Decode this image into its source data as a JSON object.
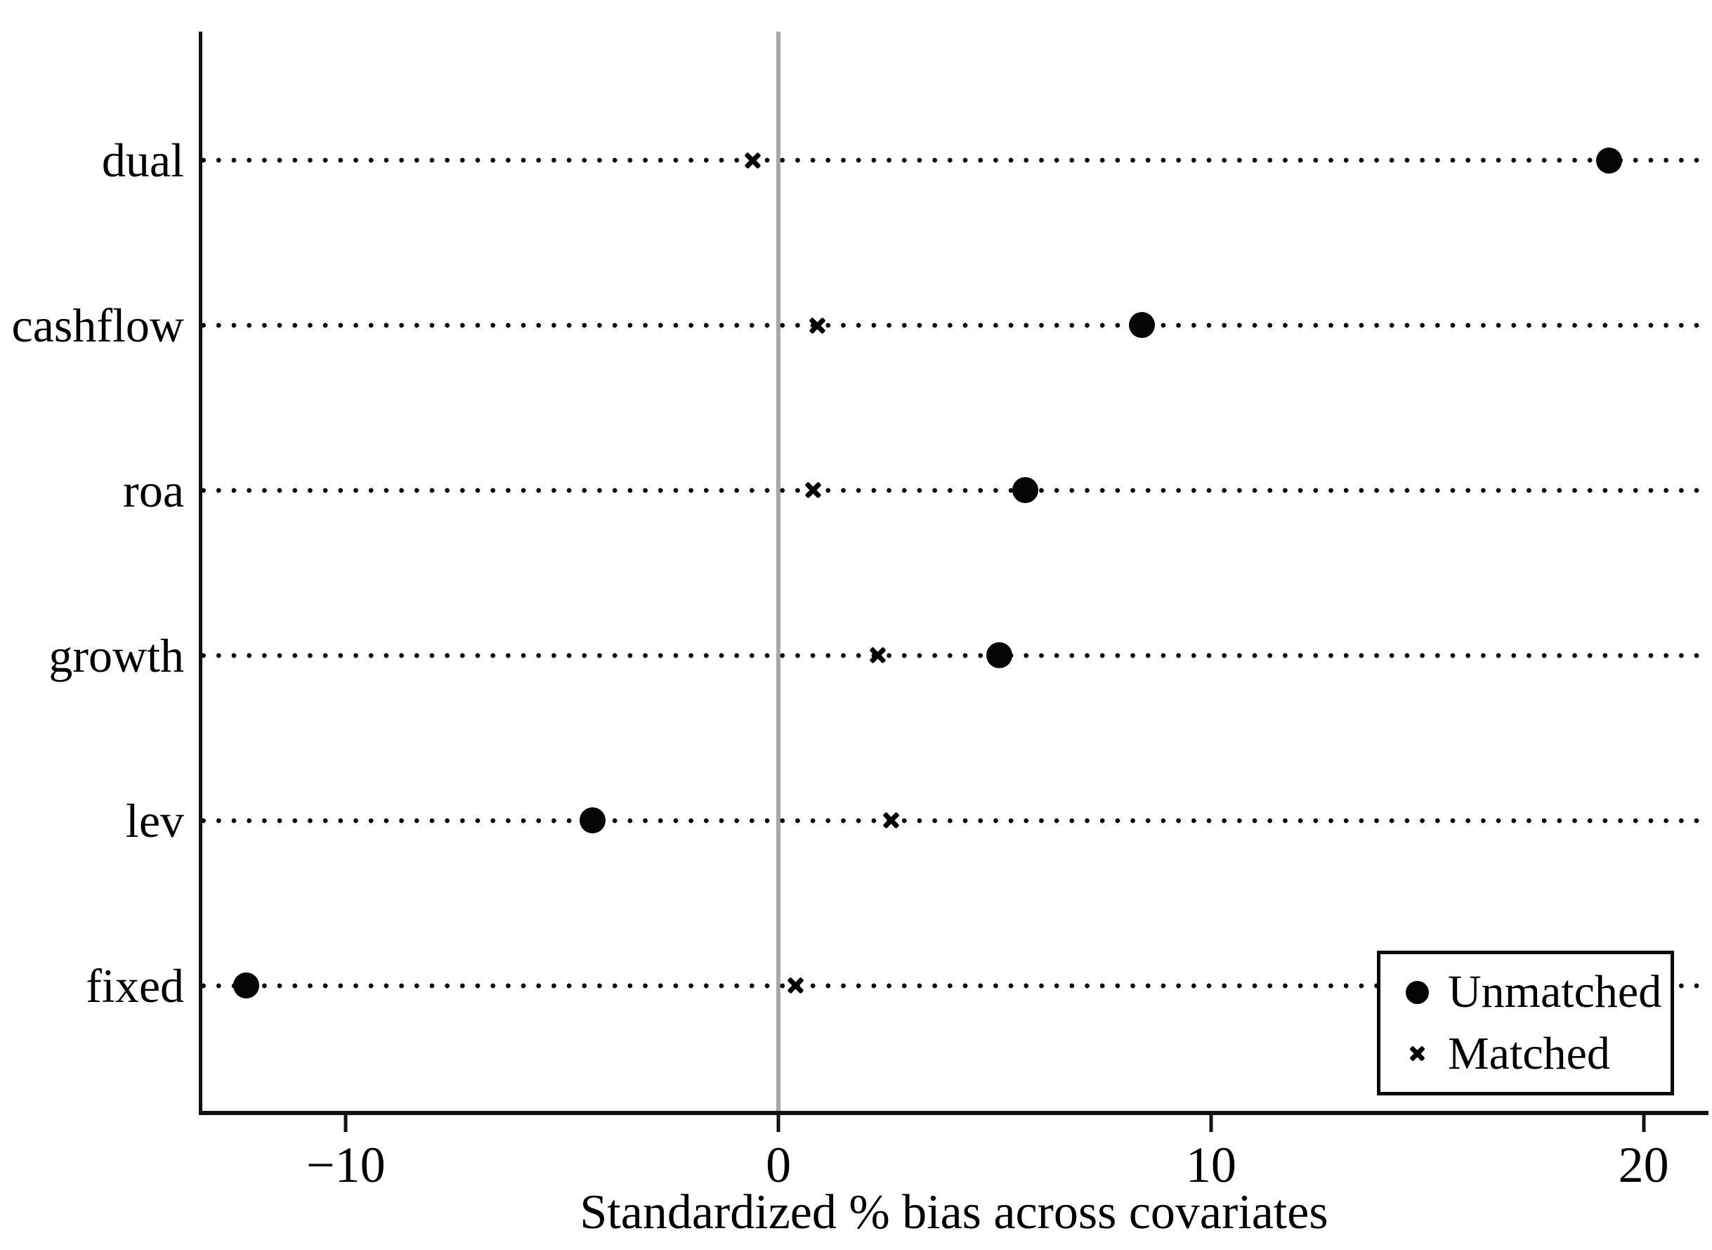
{
  "figure": {
    "xlabel": "Standardized % bias across covariates"
  },
  "chart_data": {
    "type": "scatter",
    "variant": "horizontal-dot-plot (covariate balance plot)",
    "categories": [
      "dual",
      "cashflow",
      "roa",
      "growth",
      "lev",
      "fixed"
    ],
    "series": [
      {
        "name": "Unmatched",
        "marker": "circle",
        "values": [
          19.2,
          8.4,
          5.7,
          5.1,
          -4.3,
          -12.3
        ]
      },
      {
        "name": "Matched",
        "marker": "x",
        "values": [
          -0.6,
          0.9,
          0.8,
          2.3,
          2.6,
          0.4
        ]
      }
    ],
    "xlabel": "Standardized % bias across covariates",
    "xticks": [
      -10,
      0,
      10,
      20
    ],
    "xtick_labels": [
      "−10",
      "0",
      "10",
      "20"
    ],
    "xlim": [
      -13.35,
      21.5
    ],
    "refline_x": 0,
    "grid": "dotted-horizontal-category-lines",
    "legend_position": "bottom-right-inside",
    "legend_items": [
      {
        "label": "Unmatched",
        "marker": "circle"
      },
      {
        "label": "Matched",
        "marker": "x"
      }
    ],
    "colors": {
      "marker": "#000000",
      "refline": "#a8a8a8",
      "axis": "#000000",
      "background": "#ffffff"
    }
  }
}
